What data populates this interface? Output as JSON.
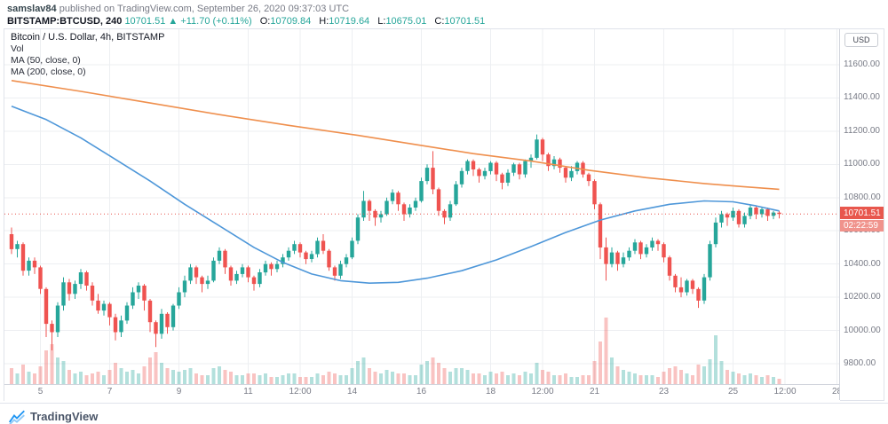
{
  "header": {
    "user": "samslav84",
    "published": "published on TradingView.com, September 26, 2020 09:37:03 UTC",
    "symbol": "BITSTAMP:BTCUSD, 240",
    "last": "10701.51",
    "change": "▲ +11.70 (+0.11%)",
    "ohlc": [
      {
        "label": "O:",
        "value": "10709.84"
      },
      {
        "label": "H:",
        "value": "10719.64"
      },
      {
        "label": "L:",
        "value": "10675.01"
      },
      {
        "label": "C:",
        "value": "10701.51"
      }
    ]
  },
  "chart": {
    "legend": {
      "title": "Bitcoin / U.S. Dollar, 4h, BITSTAMP",
      "indicator_vol": "Vol",
      "indicator_ma50": "MA (50, close, 0)",
      "indicator_ma200": "MA (200, close, 0)"
    },
    "axis_button": "USD",
    "price_badge": {
      "value": "10701.51",
      "countdown": "02:22:59"
    },
    "colors": {
      "up": "#26a69a",
      "down": "#ef5350",
      "vol_up": "rgba(38,166,154,0.35)",
      "vol_down": "rgba(239,83,80,0.35)",
      "ma50": "#4e97d9",
      "ma200": "#ef8f4d",
      "price_line": "#e8574d",
      "countdown_bg": "#f0938c",
      "grid": "#edeff2"
    }
  },
  "chart_data": {
    "type": "candlestick",
    "title": "Bitcoin / U.S. Dollar",
    "symbol": "BITSTAMP:BTCUSD",
    "interval": "4h",
    "last_price": 10701.51,
    "y_axis": {
      "ticks": [
        11600,
        11400,
        11200,
        11000,
        10800,
        10600,
        10400,
        10200,
        10000,
        9800
      ]
    },
    "x_labels": [
      {
        "label": "5",
        "i": 5
      },
      {
        "label": "7",
        "i": 17
      },
      {
        "label": "9",
        "i": 29
      },
      {
        "label": "11",
        "i": 41
      },
      {
        "label": "12:00",
        "i": 50
      },
      {
        "label": "14",
        "i": 59
      },
      {
        "label": "16",
        "i": 71
      },
      {
        "label": "18",
        "i": 83
      },
      {
        "label": "12:00",
        "i": 92
      },
      {
        "label": "21",
        "i": 101
      },
      {
        "label": "23",
        "i": 113
      },
      {
        "label": "25",
        "i": 125
      },
      {
        "label": "12:00",
        "i": 134
      },
      {
        "label": "28",
        "i": 143
      }
    ],
    "candles": [
      [
        10580,
        10620,
        10460,
        10490,
        18
      ],
      [
        10490,
        10540,
        10440,
        10520,
        12
      ],
      [
        10520,
        10530,
        10330,
        10360,
        22
      ],
      [
        10360,
        10440,
        10330,
        10420,
        14
      ],
      [
        10420,
        10440,
        10340,
        10380,
        12
      ],
      [
        10380,
        10390,
        10220,
        10250,
        20
      ],
      [
        10250,
        10260,
        9960,
        10040,
        38
      ],
      [
        10040,
        10060,
        9880,
        9990,
        45
      ],
      [
        9990,
        10170,
        9960,
        10150,
        30
      ],
      [
        10150,
        10320,
        10120,
        10290,
        26
      ],
      [
        10290,
        10310,
        10180,
        10220,
        16
      ],
      [
        10220,
        10300,
        10190,
        10280,
        12
      ],
      [
        10280,
        10370,
        10250,
        10350,
        14
      ],
      [
        10350,
        10360,
        10240,
        10270,
        10
      ],
      [
        10270,
        10290,
        10150,
        10180,
        12
      ],
      [
        10180,
        10220,
        10100,
        10120,
        14
      ],
      [
        10120,
        10180,
        10090,
        10160,
        10
      ],
      [
        10160,
        10170,
        10030,
        10080,
        16
      ],
      [
        10080,
        10100,
        9940,
        9990,
        24
      ],
      [
        9990,
        10090,
        9960,
        10060,
        18
      ],
      [
        10060,
        10170,
        10040,
        10150,
        14
      ],
      [
        10150,
        10260,
        10130,
        10230,
        16
      ],
      [
        10230,
        10290,
        10190,
        10270,
        12
      ],
      [
        10270,
        10280,
        10120,
        10180,
        20
      ],
      [
        10180,
        10190,
        9990,
        10050,
        30
      ],
      [
        10050,
        10060,
        9900,
        9980,
        36
      ],
      [
        9980,
        10130,
        9950,
        10100,
        24
      ],
      [
        10100,
        10110,
        9980,
        10020,
        18
      ],
      [
        10020,
        10160,
        10000,
        10150,
        16
      ],
      [
        10150,
        10260,
        10130,
        10230,
        14
      ],
      [
        10230,
        10330,
        10200,
        10300,
        16
      ],
      [
        10300,
        10400,
        10280,
        10380,
        18
      ],
      [
        10380,
        10390,
        10280,
        10320,
        12
      ],
      [
        10320,
        10330,
        10230,
        10280,
        10
      ],
      [
        10280,
        10330,
        10250,
        10300,
        10
      ],
      [
        10300,
        10440,
        10290,
        10420,
        18
      ],
      [
        10420,
        10500,
        10400,
        10480,
        20
      ],
      [
        10480,
        10490,
        10340,
        10380,
        16
      ],
      [
        10380,
        10390,
        10270,
        10300,
        14
      ],
      [
        10300,
        10360,
        10280,
        10340,
        10
      ],
      [
        10340,
        10400,
        10320,
        10380,
        10
      ],
      [
        10380,
        10390,
        10290,
        10320,
        12
      ],
      [
        10320,
        10330,
        10240,
        10280,
        12
      ],
      [
        10280,
        10370,
        10260,
        10350,
        10
      ],
      [
        10350,
        10420,
        10330,
        10400,
        12
      ],
      [
        10400,
        10410,
        10330,
        10370,
        8
      ],
      [
        10370,
        10420,
        10350,
        10400,
        8
      ],
      [
        10400,
        10460,
        10380,
        10440,
        10
      ],
      [
        10440,
        10500,
        10420,
        10480,
        12
      ],
      [
        10480,
        10540,
        10460,
        10520,
        12
      ],
      [
        10520,
        10530,
        10440,
        10470,
        8
      ],
      [
        10470,
        10480,
        10400,
        10430,
        8
      ],
      [
        10430,
        10480,
        10410,
        10460,
        8
      ],
      [
        10460,
        10560,
        10440,
        10540,
        12
      ],
      [
        10540,
        10580,
        10460,
        10480,
        10
      ],
      [
        10480,
        10490,
        10360,
        10380,
        14
      ],
      [
        10380,
        10390,
        10300,
        10330,
        12
      ],
      [
        10330,
        10420,
        10310,
        10400,
        10
      ],
      [
        10400,
        10460,
        10380,
        10440,
        10
      ],
      [
        10440,
        10560,
        10430,
        10540,
        18
      ],
      [
        10540,
        10700,
        10520,
        10680,
        26
      ],
      [
        10680,
        10840,
        10660,
        10780,
        30
      ],
      [
        10780,
        10790,
        10660,
        10720,
        18
      ],
      [
        10720,
        10730,
        10630,
        10680,
        14
      ],
      [
        10680,
        10720,
        10650,
        10700,
        12
      ],
      [
        10700,
        10800,
        10690,
        10780,
        16
      ],
      [
        10780,
        10850,
        10760,
        10830,
        14
      ],
      [
        10830,
        10840,
        10720,
        10760,
        12
      ],
      [
        10760,
        10770,
        10660,
        10700,
        12
      ],
      [
        10700,
        10760,
        10680,
        10740,
        10
      ],
      [
        10740,
        10800,
        10720,
        10780,
        10
      ],
      [
        10780,
        10920,
        10770,
        10900,
        22
      ],
      [
        10900,
        11000,
        10880,
        10980,
        26
      ],
      [
        10980,
        11080,
        10820,
        10850,
        30
      ],
      [
        10850,
        10860,
        10690,
        10720,
        24
      ],
      [
        10720,
        10730,
        10640,
        10680,
        18
      ],
      [
        10680,
        10780,
        10660,
        10760,
        14
      ],
      [
        10760,
        10900,
        10750,
        10880,
        18
      ],
      [
        10880,
        10980,
        10860,
        10960,
        18
      ],
      [
        10960,
        11030,
        10940,
        11020,
        16
      ],
      [
        11020,
        11030,
        10930,
        10970,
        12
      ],
      [
        10970,
        10980,
        10890,
        10930,
        12
      ],
      [
        10930,
        10980,
        10910,
        10960,
        10
      ],
      [
        10960,
        11020,
        10940,
        11010,
        14
      ],
      [
        11010,
        11020,
        10900,
        10940,
        12
      ],
      [
        10940,
        10950,
        10850,
        10890,
        14
      ],
      [
        10890,
        10970,
        10870,
        10950,
        10
      ],
      [
        10950,
        11010,
        10930,
        11000,
        12
      ],
      [
        11000,
        11010,
        10910,
        10940,
        10
      ],
      [
        10940,
        11030,
        10920,
        11020,
        14
      ],
      [
        11020,
        11060,
        10980,
        11040,
        12
      ],
      [
        11040,
        11180,
        11030,
        11150,
        24
      ],
      [
        11150,
        11160,
        11020,
        11060,
        16
      ],
      [
        11060,
        11070,
        10960,
        10990,
        14
      ],
      [
        10990,
        11050,
        10970,
        11030,
        10
      ],
      [
        11030,
        11040,
        10950,
        10980,
        10
      ],
      [
        10980,
        10990,
        10890,
        10920,
        12
      ],
      [
        10920,
        10990,
        10900,
        10960,
        8
      ],
      [
        10960,
        11020,
        10940,
        11010,
        8
      ],
      [
        11010,
        11020,
        10920,
        10940,
        10
      ],
      [
        10940,
        10950,
        10870,
        10900,
        10
      ],
      [
        10900,
        10910,
        10730,
        10760,
        26
      ],
      [
        10760,
        10770,
        10430,
        10500,
        48
      ],
      [
        10500,
        10560,
        10300,
        10400,
        75
      ],
      [
        10400,
        10500,
        10380,
        10470,
        30
      ],
      [
        10470,
        10480,
        10360,
        10400,
        20
      ],
      [
        10400,
        10470,
        10380,
        10440,
        16
      ],
      [
        10440,
        10500,
        10420,
        10480,
        14
      ],
      [
        10480,
        10550,
        10460,
        10530,
        12
      ],
      [
        10530,
        10540,
        10430,
        10460,
        10
      ],
      [
        10460,
        10520,
        10440,
        10500,
        10
      ],
      [
        10500,
        10560,
        10480,
        10540,
        10
      ],
      [
        10540,
        10550,
        10480,
        10520,
        8
      ],
      [
        10520,
        10530,
        10410,
        10440,
        14
      ],
      [
        10440,
        10450,
        10300,
        10330,
        18
      ],
      [
        10330,
        10340,
        10230,
        10260,
        20
      ],
      [
        10260,
        10320,
        10200,
        10230,
        16
      ],
      [
        10230,
        10310,
        10210,
        10300,
        12
      ],
      [
        10300,
        10310,
        10220,
        10250,
        10
      ],
      [
        10250,
        10260,
        10136,
        10180,
        22
      ],
      [
        10180,
        10340,
        10160,
        10320,
        20
      ],
      [
        10320,
        10540,
        10300,
        10520,
        28
      ],
      [
        10520,
        10680,
        10500,
        10650,
        55
      ],
      [
        10650,
        10720,
        10620,
        10700,
        26
      ],
      [
        10700,
        10710,
        10630,
        10680,
        16
      ],
      [
        10680,
        10740,
        10660,
        10720,
        14
      ],
      [
        10720,
        10730,
        10620,
        10640,
        12
      ],
      [
        10640,
        10710,
        10620,
        10690,
        10
      ],
      [
        10690,
        10760,
        10670,
        10740,
        12
      ],
      [
        10740,
        10750,
        10670,
        10700,
        10
      ],
      [
        10700,
        10740,
        10680,
        10730,
        8
      ],
      [
        10730,
        10740,
        10660,
        10690,
        10
      ],
      [
        10690,
        10720,
        10670,
        10710,
        8
      ],
      [
        10709.84,
        10719.64,
        10675.01,
        10701.51,
        6
      ]
    ],
    "ma50_points": [
      [
        0,
        11350
      ],
      [
        6,
        11270
      ],
      [
        12,
        11160
      ],
      [
        18,
        11030
      ],
      [
        24,
        10900
      ],
      [
        30,
        10760
      ],
      [
        36,
        10630
      ],
      [
        42,
        10500
      ],
      [
        47,
        10410
      ],
      [
        52,
        10340
      ],
      [
        57,
        10300
      ],
      [
        62,
        10285
      ],
      [
        67,
        10290
      ],
      [
        72,
        10315
      ],
      [
        78,
        10360
      ],
      [
        84,
        10425
      ],
      [
        90,
        10505
      ],
      [
        96,
        10590
      ],
      [
        102,
        10665
      ],
      [
        108,
        10720
      ],
      [
        114,
        10760
      ],
      [
        120,
        10780
      ],
      [
        125,
        10775
      ],
      [
        129,
        10750
      ],
      [
        133,
        10720
      ]
    ],
    "ma200_points": [
      [
        0,
        11505
      ],
      [
        12,
        11440
      ],
      [
        24,
        11370
      ],
      [
        36,
        11300
      ],
      [
        48,
        11235
      ],
      [
        60,
        11175
      ],
      [
        70,
        11120
      ],
      [
        80,
        11065
      ],
      [
        90,
        11020
      ],
      [
        100,
        10965
      ],
      [
        110,
        10920
      ],
      [
        120,
        10885
      ],
      [
        127,
        10865
      ],
      [
        133,
        10850
      ]
    ]
  },
  "footer": {
    "brand": "TradingView"
  }
}
